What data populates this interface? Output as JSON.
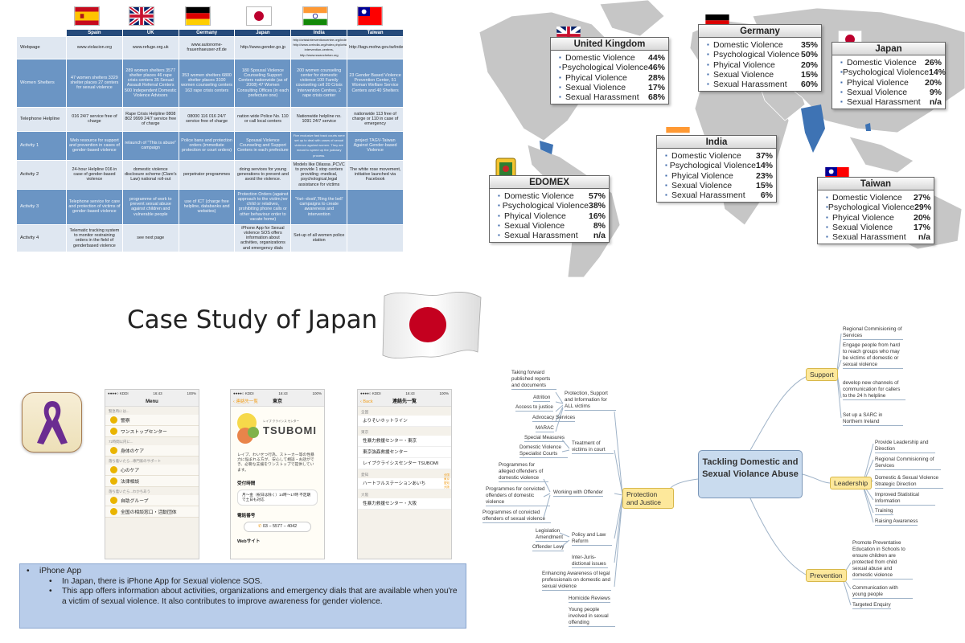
{
  "table": {
    "columns": [
      "Spain",
      "UK",
      "Germany",
      "Japan",
      "India",
      "Taiwan"
    ],
    "rows": [
      {
        "label": "Webpage",
        "cells": [
          "www.violacion.org",
          "www.refuge.org.uk",
          "www.autonome-frauenhaeuser-zif.de",
          "http://www.gender.go.jp",
          "http://crisisinterventioncentre.org/index, http://www.cvrindia.org/index.php/crisis-intervention-centres, http://www.swanchetan.org",
          "http://tagv.mohw.gov.tw/index.aspx"
        ]
      },
      {
        "label": "Women Shelters",
        "cells": [
          "47 women shelters 3329 shelter places 27 centers for sexual violence",
          "289 women shelters 3577 shelter places 46 rape crisis centers 35 Sexual Assault Referral Centers 500 Independent Domestic Violence Advisors",
          "353 women shelters 6800 shelter places 3100 women counseling centers 163 rape crisis centers",
          "180 Spousal Violence Counseling Support Centers nationwide (as of 2008) 47 Women Consulting Offices (in each prefecture one)",
          "200 women counseling center for domestic violence 100 Family counseling cell 20 Crisis Intervention Centres, 2 rape crisis center",
          "23 Gender Based Violence Prevention Center, 51 Woman Welfare Service Centers and 40 Shelters"
        ]
      },
      {
        "label": "Telephone Helpline",
        "cells": [
          "016 24/7 service free of charge",
          "Rape Crisis Helpline 0808 802 9999 24/7 service free of charge",
          "08000 116 016 24/7 service free of charge",
          "nation wide Police No. 110 or call local centers",
          "Nationwide helpline no. 1091 24/7 service",
          "nationwide 113 free of charge or 110 in case of emergency"
        ]
      },
      {
        "label": "Activity 1",
        "cells": [
          "Web resource for support and prevention in cases of gender-based violence",
          "relaunch of \"This is abuse\" campaign",
          "Police bans and protection orders (immediate protection or court orders)",
          "Spousal Violence Counseling and Support Centers in each prefecture",
          "Five exclusive fast track courts were set up to deal with cases of sexual violence against women. They are meant to speed up the judiciary process.",
          "project TAGV-Taiwan Against Gender-based Violence"
        ]
      },
      {
        "label": "Activity 2",
        "cells": [
          "24-hour Helpline 016 in case of gender-based violence",
          "domestic violence disclosure scheme (Clare's Law) national roll-out",
          "perpetrator programmes",
          "doing services for young generations to prevent and avoid the violence.",
          "Models like Dilassa ,PCVC to provide 1 stop centers providing -medical, psychological,legal assistance for victims",
          "The white rose movement, initiative launched via Facebook"
        ]
      },
      {
        "label": "Activity 3",
        "cells": [
          "Telephone service for care and protection of victims of gender-based violence",
          "programme of work to prevent sexual abuse against children and vulnerable people",
          "use of ICT (charge free helpline, databanks and websites)",
          "Protection Orders (against approach to the victim,her child or relatives, prohibiting phone calls or other behaviour order to vacate home)",
          "'Yari--dosti','Ring the bell' campaigns to create awareness and intervention",
          ""
        ]
      },
      {
        "label": "Activity 4",
        "cells": [
          "Telematic tracking system to monitor restraining orders in the field of genderbased violence",
          "see next page",
          "",
          "iPhone App for Sexual violence SOS offers information about activities, organizations and emergency dials",
          "Set-up of all women police station",
          ""
        ]
      }
    ]
  },
  "map_boxes": [
    {
      "id": "uk",
      "title": "United Kingdom",
      "items": [
        [
          "Domestic Violence",
          "44%"
        ],
        [
          "Psychological Violence",
          "46%"
        ],
        [
          "Phyical Violence",
          "28%"
        ],
        [
          "Sexual Violence",
          "17%"
        ],
        [
          "Sexual Harassment",
          "68%"
        ]
      ]
    },
    {
      "id": "germany",
      "title": "Germany",
      "items": [
        [
          "Domestic Violence",
          "35%"
        ],
        [
          "Psychological Violence",
          "50%"
        ],
        [
          "Phyical Violence",
          "20%"
        ],
        [
          "Sexual Violence",
          "15%"
        ],
        [
          "Sexual Harassment",
          "60%"
        ]
      ]
    },
    {
      "id": "japan",
      "title": "Japan",
      "items": [
        [
          "Domestic Violence",
          "26%"
        ],
        [
          "Psychological Violence",
          "14%"
        ],
        [
          "Phyical Violence",
          "20%"
        ],
        [
          "Sexual Violence",
          "9%"
        ],
        [
          "Sexual Harassment",
          "n/a"
        ]
      ]
    },
    {
      "id": "india",
      "title": "India",
      "items": [
        [
          "Domestic Violence",
          "37%"
        ],
        [
          "Psychological Violence",
          "14%"
        ],
        [
          "Phyical Violence",
          "23%"
        ],
        [
          "Sexual Violence",
          "15%"
        ],
        [
          "Sexual Harassment",
          "6%"
        ]
      ]
    },
    {
      "id": "edomex",
      "title": "EDOMEX",
      "items": [
        [
          "Domestic Violence",
          "57%"
        ],
        [
          "Psychological Violence",
          "38%"
        ],
        [
          "Phyical Violence",
          "16%"
        ],
        [
          "Sexual Violence",
          "8%"
        ],
        [
          "Sexual Harassment",
          "n/a"
        ]
      ]
    },
    {
      "id": "taiwan",
      "title": "Taiwan",
      "items": [
        [
          "Domestic Violence",
          "27%"
        ],
        [
          "Psychological Violence",
          "29%"
        ],
        [
          "Phyical Violence",
          "20%"
        ],
        [
          "Sexual Violence",
          "17%"
        ],
        [
          "Sexual Harassment",
          "n/a"
        ]
      ]
    }
  ],
  "case_title": "Case Study of Japan",
  "phones": {
    "status_carrier": "●●●●○ KDDI",
    "status_time": "16:43",
    "status_batt": "100%",
    "p1": {
      "title": "Menu",
      "sec1": "緊急時には...",
      "sec2": "72時間以内に...",
      "sec3": "落ち着いたら...専門家のサポート",
      "sec4": "落ち着いたら...わかちあう",
      "items": [
        "警察",
        "ワンストップセンター",
        "身体のケア",
        "心のケア",
        "法律相談",
        "自助グループ",
        "全国の相談窓口・活動団体"
      ]
    },
    "p2": {
      "back": "連絡先一覧",
      "title": "東京",
      "logo_kana": "レイプ クライシス センター",
      "logo_text": "TSUBOMI",
      "desc": "レイプ、わいせつ行為、ストーカー等の性暴力に悩まれる方が、安心して相談・お話ができ、必要な支援をワンストップで提供しています。",
      "hours_label": "受付時間",
      "hours": "月～金（祝日は除く）14時～17時 不定期で土日も対応",
      "phone_label": "電話番号",
      "phone": "03 − 5577 − 4042",
      "web_label": "Webサイト"
    },
    "p3": {
      "back": "Back",
      "title": "連絡先一覧",
      "sections": [
        {
          "h": "全国",
          "items": [
            "よりそいホットライン"
          ]
        },
        {
          "h": "東京",
          "items": [
            "性暴力救援センター・東京",
            "東京強姦救援センター",
            "レイプクライシスセンター TSUBOMI"
          ]
        },
        {
          "h": "愛知",
          "items": [
            "ハートフルステーションあいち"
          ]
        },
        {
          "h": "大阪",
          "items": [
            "性暴力救援センター・大阪"
          ]
        }
      ],
      "index": [
        "全国",
        "東京",
        "愛知",
        "大阪"
      ]
    }
  },
  "info": {
    "heading": "iPhone App",
    "points": [
      "In Japan, there is iPhone App for Sexual violence SOS.",
      "This app offers information about activities, organizations and emergency dials that are available when you're a victim of sexual violence. It also contributes to improve awareness for gender violence."
    ]
  },
  "mindmap": {
    "center": "Tackling Domestic and Sexual Violance Abuse",
    "support": {
      "label": "Support",
      "items": [
        "Regional Commisioning of Services",
        "Engage people from hard to reach groups who may be victims of domestic or sexual violence",
        "develop new channels of communication for callers to the 24 h helpline",
        "Set up a SARC in Northern Ireland"
      ]
    },
    "leadership": {
      "label": "Leadership",
      "items": [
        "Provide Leadership and Direction",
        "Regional Commisioning of Services",
        "Domestic & Sexual Violence Strategic Direction",
        "Improved Statistical Information",
        "Training",
        "Raising Awareness"
      ]
    },
    "prevention": {
      "label": "Prevention",
      "items": [
        "Promote Preventative Education in Schools to ensure children are protected from child sexual abuse and domestic violence",
        "Communication with young people",
        "Targeted Enquiry"
      ]
    },
    "protection": {
      "label": "Protection and Justice",
      "subs": [
        {
          "label": "Protection, Support and Information for ALL victims",
          "items": [
            "Taking forward published reports and documents",
            "Attrition",
            "Access to justice",
            "Advocacy Services",
            "MARAC"
          ]
        },
        {
          "label": "Treatment of victims in court",
          "items": [
            "Special Measures",
            "Domestic Violence Specialist Courts"
          ]
        },
        {
          "label": "Working with Offender",
          "items": [
            "Programmes for alleged offenders of domestic violence",
            "Programmes for convicted offenders of domestic violence",
            "Programmes of convicted offenders of sexual violence"
          ]
        },
        {
          "label": "Policy and Law Reform",
          "items": [
            "Legislation Amendment",
            "Offender Levy"
          ]
        },
        {
          "label": "Inter-Juris-dictional issues",
          "items": []
        },
        {
          "label": "",
          "items": [
            "Enhancing Awareness of legal professionals on domestic and sexual violence",
            "Homicide Reviews",
            "Young people involved in sexual offending"
          ]
        }
      ]
    }
  },
  "colors": {
    "table_header": "#254a7a",
    "table_dark": "#6b95c4",
    "table_light": "#dfe7f1",
    "info_bg": "#b9cdea",
    "map_land": "#c6c6c6",
    "map_highlight": "#3e73b4",
    "mm_branch": "#fde89b",
    "mm_center": "#c9dbee",
    "ribbon": "#6b2c91"
  }
}
